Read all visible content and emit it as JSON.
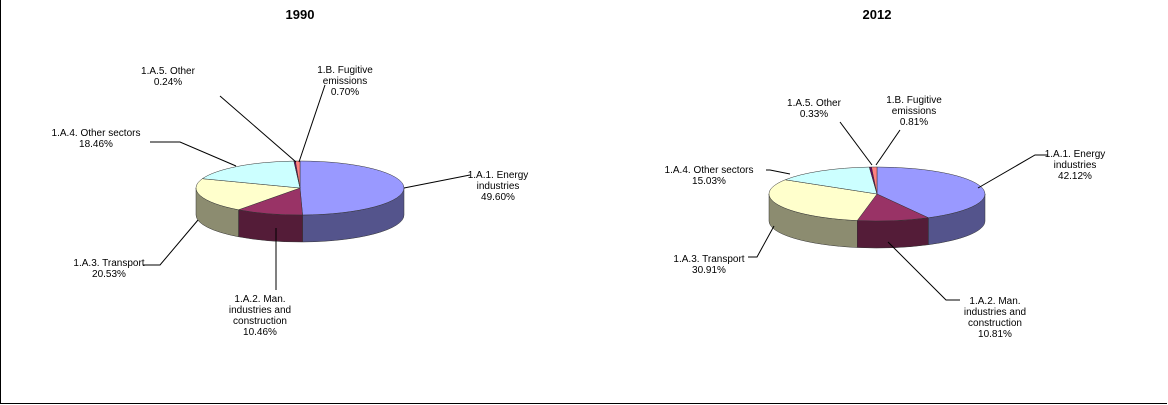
{
  "chart_data": [
    {
      "type": "pie",
      "title": "1990",
      "slices": [
        {
          "category": "1.A.1. Energy industries",
          "label_lines": [
            "1.A.1. Energy",
            "industries"
          ],
          "value": 49.6,
          "pct": "49.60%",
          "color": "#9999ff"
        },
        {
          "category": "1.A.2. Man. industries and construction",
          "label_lines": [
            "1.A.2. Man.",
            "industries and",
            "construction"
          ],
          "value": 10.46,
          "pct": "10.46%",
          "color": "#993366"
        },
        {
          "category": "1.A.3. Transport",
          "label_lines": [
            "1.A.3. Transport"
          ],
          "value": 20.53,
          "pct": "20.53%",
          "color": "#ffffcc"
        },
        {
          "category": "1.A.4. Other sectors",
          "label_lines": [
            "1.A.4. Other sectors"
          ],
          "value": 18.46,
          "pct": "18.46%",
          "color": "#ccffff"
        },
        {
          "category": "1.A.5. Other",
          "label_lines": [
            "1.A.5. Other"
          ],
          "value": 0.24,
          "pct": "0.24%",
          "color": "#660066"
        },
        {
          "category": "1.B. Fugitive emissions",
          "label_lines": [
            "1.B. Fugitive",
            "emissions"
          ],
          "value": 0.7,
          "pct": "0.70%",
          "color": "#ff8080"
        }
      ]
    },
    {
      "type": "pie",
      "title": "2012",
      "slices": [
        {
          "category": "1.A.1. Energy industries",
          "label_lines": [
            "1.A.1. Energy",
            "industries"
          ],
          "value": 42.12,
          "pct": "42.12%",
          "color": "#9999ff"
        },
        {
          "category": "1.A.2. Man. industries and construction",
          "label_lines": [
            "1.A.2. Man.",
            "industries and",
            "construction"
          ],
          "value": 10.81,
          "pct": "10.81%",
          "color": "#993366"
        },
        {
          "category": "1.A.3. Transport",
          "label_lines": [
            "1.A.3. Transport"
          ],
          "value": 30.91,
          "pct": "30.91%",
          "color": "#ffffcc"
        },
        {
          "category": "1.A.4. Other sectors",
          "label_lines": [
            "1.A.4. Other sectors"
          ],
          "value": 15.03,
          "pct": "15.03%",
          "color": "#ccffff"
        },
        {
          "category": "1.A.5. Other",
          "label_lines": [
            "1.A.5. Other"
          ],
          "value": 0.33,
          "pct": "0.33%",
          "color": "#660066"
        },
        {
          "category": "1.B. Fugitive emissions",
          "label_lines": [
            "1.B. Fugitive",
            "emissions"
          ],
          "value": 0.81,
          "pct": "0.81%",
          "color": "#ff8080"
        }
      ]
    }
  ]
}
